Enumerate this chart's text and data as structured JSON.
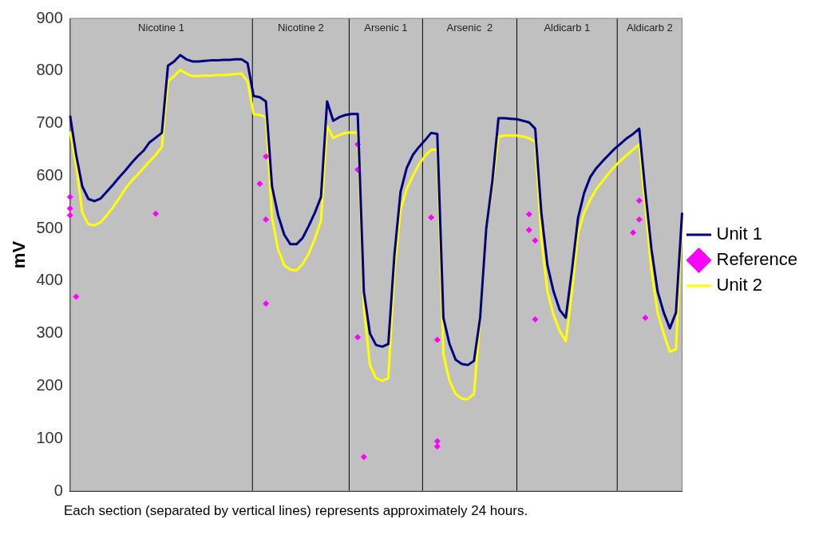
{
  "chart_data": {
    "type": "line",
    "ylabel": "mV",
    "ylim": [
      0,
      900
    ],
    "yticks": [
      0,
      100,
      200,
      300,
      400,
      500,
      600,
      700,
      800,
      900
    ],
    "tick_labels": "y",
    "grid": false,
    "legend": "right",
    "categories": [
      null,
      null,
      null,
      null,
      null,
      null,
      null,
      null,
      null,
      null,
      null,
      null,
      null,
      null,
      null,
      null,
      null,
      null,
      null,
      null,
      null,
      null,
      null,
      null,
      null,
      null,
      null,
      null,
      null,
      null,
      null,
      null,
      null,
      null,
      null,
      null,
      null,
      null,
      null,
      null,
      null,
      null,
      null,
      null,
      null,
      null,
      null,
      null,
      null,
      null,
      null,
      null,
      null,
      null,
      null,
      null,
      null,
      null,
      null,
      null,
      null,
      null,
      null,
      null,
      null,
      null,
      null,
      null,
      null,
      null,
      null,
      null,
      null,
      null,
      null,
      null,
      null,
      null,
      null,
      null,
      null,
      null,
      null,
      null,
      null,
      null,
      null,
      null,
      null,
      null,
      null,
      null,
      null,
      null,
      null,
      null,
      null,
      null,
      null,
      null,
      null
    ],
    "annotations": [
      "Nicotine 1",
      "Nicotine 2",
      "Arsenic 1",
      "Arsenic  2",
      "Aldicarb 1",
      "Aldicarb 2",
      "Each section (separated by vertical lines) represents approximately 24 hours."
    ],
    "series": [
      {
        "name": "Unit 1",
        "color": "#000080",
        "marker": "none",
        "values": [
          715,
          640,
          580,
          556,
          552,
          557,
          570,
          583,
          597,
          610,
          624,
          637,
          648,
          664,
          673,
          682,
          810,
          818,
          830,
          822,
          818,
          818,
          819,
          820,
          820,
          821,
          821,
          822,
          822,
          815,
          752,
          750,
          742,
          580,
          525,
          488,
          470,
          470,
          482,
          505,
          530,
          560,
          742,
          705,
          712,
          716,
          718,
          718,
          380,
          300,
          278,
          275,
          280,
          450,
          570,
          615,
          640,
          655,
          668,
          682,
          680,
          330,
          280,
          250,
          242,
          240,
          248,
          330,
          500,
          590,
          710,
          710,
          709,
          708,
          705,
          702,
          690,
          530,
          430,
          380,
          345,
          330,
          420,
          520,
          568,
          598,
          615,
          628,
          640,
          652,
          662,
          672,
          680,
          690,
          570,
          460,
          380,
          340,
          310,
          340,
          530
        ]
      },
      {
        "name": "Reference",
        "type": "scatter",
        "color": "#ff00ff",
        "marker": "diamond",
        "values": [
          560,
          370,
          null,
          null,
          null,
          null,
          null,
          null,
          null,
          null,
          null,
          null,
          null,
          null,
          528,
          null,
          null,
          null,
          null,
          null,
          null,
          null,
          null,
          null,
          null,
          null,
          null,
          null,
          null,
          null,
          null,
          585,
          637,
          null,
          null,
          null,
          null,
          null,
          null,
          null,
          null,
          null,
          null,
          null,
          null,
          null,
          null,
          660,
          65,
          null,
          null,
          null,
          null,
          null,
          null,
          null,
          null,
          null,
          null,
          521,
          288,
          null,
          null,
          null,
          null,
          null,
          null,
          null,
          null,
          null,
          null,
          null,
          null,
          null,
          null,
          497,
          477,
          null,
          null,
          null,
          null,
          null,
          null,
          null,
          null,
          null,
          null,
          null,
          null,
          null,
          null,
          null,
          492,
          553,
          330,
          null,
          null,
          null,
          null,
          null,
          null
        ]
      },
      {
        "type": "scatter",
        "color": "#ff00ff",
        "marker": "diamond",
        "values": [
          538,
          null,
          null,
          null,
          null,
          null,
          null,
          null,
          null,
          null,
          null,
          null,
          null,
          null,
          null,
          null,
          null,
          null,
          null,
          null,
          null,
          null,
          null,
          null,
          null,
          null,
          null,
          null,
          null,
          null,
          null,
          null,
          517,
          null,
          null,
          null,
          null,
          null,
          null,
          null,
          null,
          null,
          null,
          null,
          null,
          null,
          null,
          612,
          null,
          null,
          null,
          null,
          null,
          null,
          null,
          null,
          null,
          null,
          null,
          null,
          85,
          null,
          null,
          null,
          null,
          null,
          null,
          null,
          null,
          null,
          null,
          null,
          null,
          null,
          null,
          527,
          327,
          null,
          null,
          null,
          null,
          null,
          null,
          null,
          null,
          null,
          null,
          null,
          null,
          null,
          null,
          null,
          null,
          517,
          null,
          null,
          null,
          null,
          null,
          null,
          null
        ]
      },
      {
        "type": "scatter",
        "color": "#ff00ff",
        "marker": "diamond",
        "values": [
          525,
          null,
          null,
          null,
          null,
          null,
          null,
          null,
          null,
          null,
          null,
          null,
          null,
          null,
          null,
          null,
          null,
          null,
          null,
          null,
          null,
          null,
          null,
          null,
          null,
          null,
          null,
          null,
          null,
          null,
          null,
          null,
          357,
          null,
          null,
          null,
          null,
          null,
          null,
          null,
          null,
          null,
          null,
          null,
          null,
          null,
          null,
          293,
          null,
          null,
          null,
          null,
          null,
          null,
          null,
          null,
          null,
          null,
          null,
          null,
          95,
          null,
          null,
          null,
          null,
          null,
          null,
          null,
          null,
          null,
          null,
          null,
          null,
          null,
          null,
          null,
          null,
          null,
          null,
          null,
          null,
          null,
          null,
          null,
          null,
          null,
          null,
          null,
          null,
          null,
          null,
          null,
          null,
          null,
          null,
          null,
          null,
          null,
          null,
          null,
          null
        ]
      },
      {
        "name": "Unit 2",
        "color": "#ffff00",
        "marker": "none",
        "values": [
          685,
          620,
          530,
          508,
          506,
          512,
          525,
          540,
          557,
          575,
          590,
          602,
          615,
          628,
          640,
          655,
          780,
          790,
          802,
          795,
          790,
          790,
          791,
          791,
          792,
          792,
          793,
          794,
          795,
          780,
          718,
          716,
          712,
          520,
          460,
          430,
          422,
          420,
          432,
          452,
          480,
          515,
          695,
          672,
          678,
          682,
          683,
          682,
          350,
          240,
          215,
          210,
          215,
          420,
          535,
          575,
          600,
          622,
          638,
          650,
          650,
          260,
          210,
          185,
          176,
          175,
          185,
          330,
          500,
          580,
          675,
          677,
          677,
          677,
          675,
          672,
          665,
          480,
          380,
          335,
          305,
          285,
          380,
          490,
          530,
          555,
          575,
          590,
          605,
          618,
          630,
          640,
          650,
          660,
          540,
          420,
          340,
          300,
          265,
          270,
          520
        ]
      }
    ]
  }
}
